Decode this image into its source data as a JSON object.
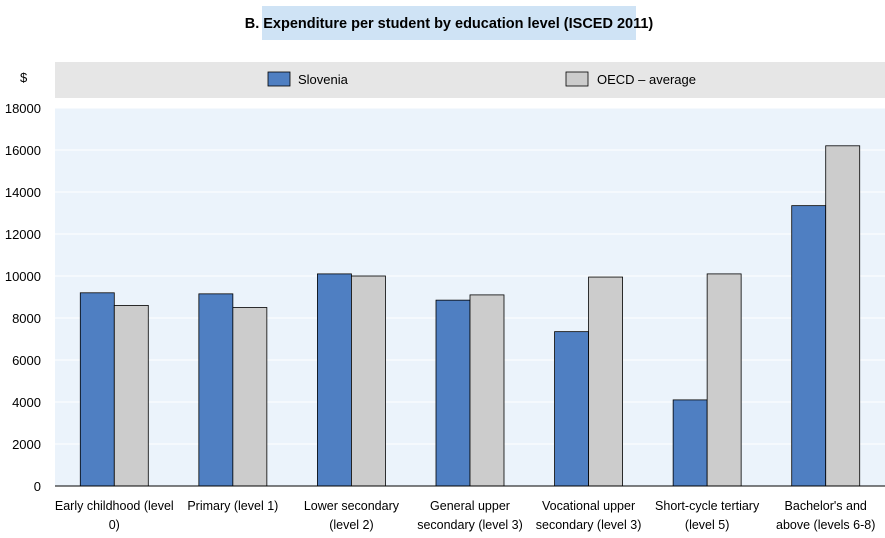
{
  "chart_data": {
    "type": "bar",
    "title": "B. Expenditure per student by education level (ISCED 2011)",
    "ylabel": "$",
    "ylim": [
      0,
      18000
    ],
    "yticks": [
      0,
      2000,
      4000,
      6000,
      8000,
      10000,
      12000,
      14000,
      16000,
      18000
    ],
    "grid": true,
    "legend_position": "top",
    "categories": [
      [
        "Early childhood (level",
        "0)"
      ],
      [
        "Primary (level 1)"
      ],
      [
        "Lower secondary",
        "(level 2)"
      ],
      [
        "General upper",
        "secondary (level 3)"
      ],
      [
        "Vocational upper",
        "secondary (level 3)"
      ],
      [
        "Short-cycle tertiary",
        "(level 5)"
      ],
      [
        "Bachelor's and",
        "above (levels 6-8)"
      ]
    ],
    "series": [
      {
        "name": "Slovenia",
        "color": "#4f7fc2",
        "values": [
          9200,
          9150,
          10100,
          8850,
          7350,
          4100,
          13350
        ]
      },
      {
        "name": "OECD – average",
        "color": "#cccccc",
        "values": [
          8600,
          8500,
          10000,
          9100,
          9950,
          10100,
          16200
        ]
      }
    ]
  }
}
